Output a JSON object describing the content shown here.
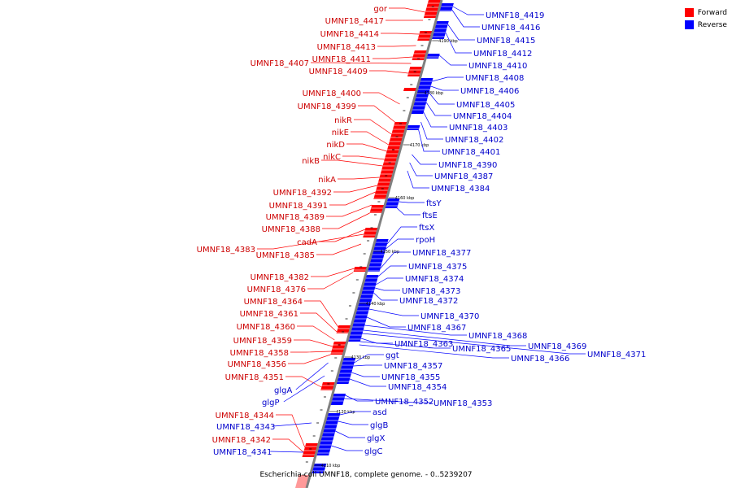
{
  "title": "Escherichia coli UMNF18, complete genome. - 0..5239207",
  "legend": [
    {
      "label": "Forward",
      "color": "#ff0000"
    },
    {
      "label": "Reverse",
      "color": "#0000ff"
    }
  ],
  "colors": {
    "forward": "#ff0000",
    "reverse": "#0000ff",
    "axis": "#808080"
  },
  "ticks": [
    "4110 kbp",
    "4120 kbp",
    "4130 kbp",
    "4140 kbp",
    "4150 kbp",
    "4160 kbp",
    "4170 kbp",
    "4180 kbp",
    "4190 kbp"
  ],
  "forward_labels": [
    "gor",
    "UMNF18_4417",
    "UMNF18_4414",
    "UMNF18_4413",
    "UMNF18_4411",
    "UMNF18_4407",
    "UMNF18_4409",
    "UMNF18_4400",
    "UMNF18_4399",
    "nikR",
    "nikE",
    "nikD",
    "nikC",
    "nikB",
    "nikA",
    "UMNF18_4392",
    "UMNF18_4391",
    "UMNF18_4389",
    "UMNF18_4388",
    "cadA",
    "UMNF18_4383",
    "UMNF18_4385",
    "UMNF18_4382",
    "UMNF18_4376",
    "UMNF18_4364",
    "UMNF18_4361",
    "UMNF18_4360",
    "UMNF18_4359",
    "UMNF18_4358",
    "UMNF18_4356",
    "UMNF18_4351",
    "UMNF18_4344",
    "UMNF18_4342"
  ],
  "reverse_labels": [
    "UMNF18_4419",
    "UMNF18_4416",
    "UMNF18_4415",
    "UMNF18_4412",
    "UMNF18_4410",
    "UMNF18_4408",
    "UMNF18_4406",
    "UMNF18_4405",
    "UMNF18_4404",
    "UMNF18_4403",
    "UMNF18_4402",
    "UMNF18_4401",
    "UMNF18_4390",
    "UMNF18_4387",
    "UMNF18_4384",
    "ftsY",
    "ftsE",
    "ftsX",
    "rpoH",
    "UMNF18_4377",
    "UMNF18_4375",
    "UMNF18_4374",
    "UMNF18_4373",
    "UMNF18_4372",
    "UMNF18_4370",
    "UMNF18_4367",
    "UMNF18_4368",
    "UMNF18_4369",
    "UMNF18_4371",
    "UMNF18_4363",
    "UMNF18_4365",
    "UMNF18_4366",
    "ggt",
    "UMNF18_4357",
    "UMNF18_4355",
    "UMNF18_4354",
    "UMNF18_4352",
    "UMNF18_4353",
    "asd",
    "glgB",
    "glgX",
    "glgC",
    "glgA",
    "glgP",
    "UMNF18_4343",
    "UMNF18_4341"
  ]
}
